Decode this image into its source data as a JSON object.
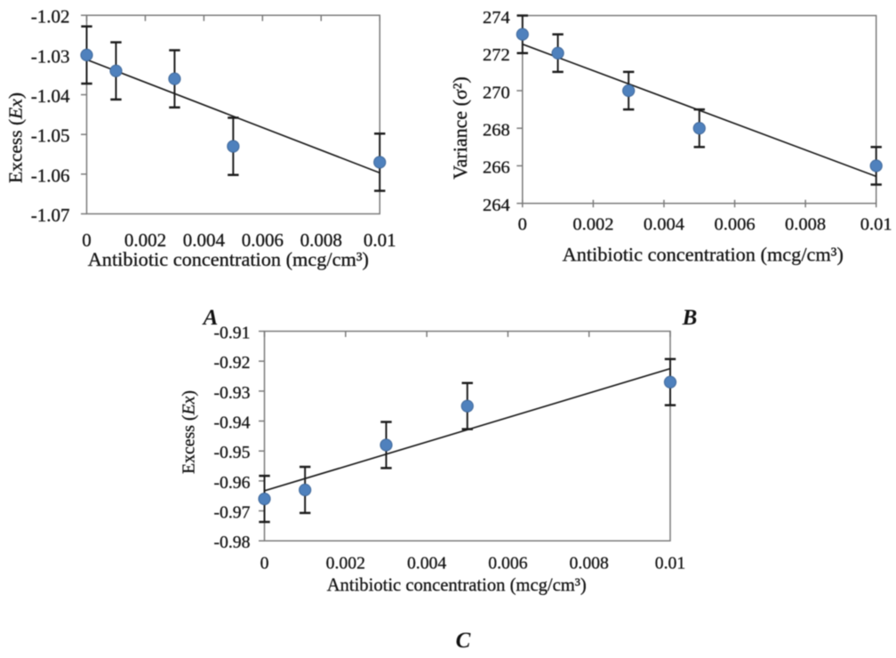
{
  "figure": {
    "background": "#ffffff",
    "text_color": "#141414",
    "axis_color": "#7a7a7a",
    "point_color": "#4f81bd",
    "point_edge_color": "#41699a",
    "error_bar_color": "#1c1c1c",
    "trend_color": "#1c1c1c"
  },
  "chart_data": [
    {
      "type": "scatter",
      "panel_label": "A",
      "xlabel": "Antibiotic concentration (mcg/cm³)",
      "ylabel": "Excess (Ex)",
      "ylabel_parts": [
        {
          "text": "Excess (",
          "italic": false
        },
        {
          "text": "Ex",
          "italic": true
        },
        {
          "text": ")",
          "italic": false
        }
      ],
      "x": [
        0,
        0.001,
        0.003,
        0.005,
        0.01
      ],
      "y": [
        -1.03,
        -1.034,
        -1.036,
        -1.053,
        -1.057
      ],
      "yerr": 0.0072,
      "xlim": [
        0,
        0.01
      ],
      "ylim": [
        -1.07,
        -1.02
      ],
      "xticks": [
        0,
        0.002,
        0.004,
        0.006,
        0.008,
        0.01
      ],
      "xtick_labels": [
        "0",
        "0.002",
        "0.004",
        "0.006",
        "0.008",
        "0.01"
      ],
      "yticks": [
        -1.02,
        -1.03,
        -1.04,
        -1.05,
        -1.06,
        -1.07
      ],
      "ytick_labels": [
        "-1.02",
        "-1.03",
        "-1.04",
        "-1.05",
        "-1.06",
        "-1.07"
      ],
      "trendline": true,
      "x_axis_position": "top",
      "grid": false,
      "legend": false
    },
    {
      "type": "scatter",
      "panel_label": "B",
      "xlabel": "Antibiotic concentration (mcg/cm³)",
      "ylabel": "Variance (σ²)",
      "ylabel_parts": [
        {
          "text": "Variance (σ²)",
          "italic": false
        }
      ],
      "x": [
        0,
        0.001,
        0.003,
        0.005,
        0.01
      ],
      "y": [
        273,
        272,
        270,
        268,
        266
      ],
      "yerr": 1,
      "xlim": [
        0,
        0.01
      ],
      "ylim": [
        264,
        274
      ],
      "xticks": [
        0,
        0.002,
        0.004,
        0.006,
        0.008,
        0.01
      ],
      "xtick_labels": [
        "0",
        "0.002",
        "0.004",
        "0.006",
        "0.008",
        "0.01"
      ],
      "yticks": [
        274,
        272,
        270,
        268,
        266,
        264
      ],
      "ytick_labels": [
        "274",
        "272",
        "270",
        "268",
        "266",
        "264"
      ],
      "trendline": true,
      "x_axis_position": "bottom",
      "grid": false,
      "legend": false
    },
    {
      "type": "scatter",
      "panel_label": "C",
      "xlabel": "Antibiotic concentration (mcg/cm³)",
      "ylabel": "Excess (Ex)",
      "ylabel_parts": [
        {
          "text": "Excess (",
          "italic": false
        },
        {
          "text": "Ex",
          "italic": true
        },
        {
          "text": ")",
          "italic": false
        }
      ],
      "x": [
        0,
        0.001,
        0.003,
        0.005,
        0.01
      ],
      "y": [
        -0.966,
        -0.963,
        -0.948,
        -0.935,
        -0.927
      ],
      "yerr": 0.0077,
      "xlim": [
        0,
        0.01
      ],
      "ylim": [
        -0.98,
        -0.91
      ],
      "xticks": [
        0,
        0.002,
        0.004,
        0.006,
        0.008,
        0.01
      ],
      "xtick_labels": [
        "0",
        "0.002",
        "0.004",
        "0.006",
        "0.008",
        "0.01"
      ],
      "yticks": [
        -0.91,
        -0.92,
        -0.93,
        -0.94,
        -0.95,
        -0.96,
        -0.97,
        -0.98
      ],
      "ytick_labels": [
        "-0.91",
        "-0.92",
        "-0.93",
        "-0.94",
        "-0.95",
        "-0.96",
        "-0.97",
        "-0.98"
      ],
      "trendline": true,
      "x_axis_position": "top",
      "grid": false,
      "legend": false
    }
  ]
}
